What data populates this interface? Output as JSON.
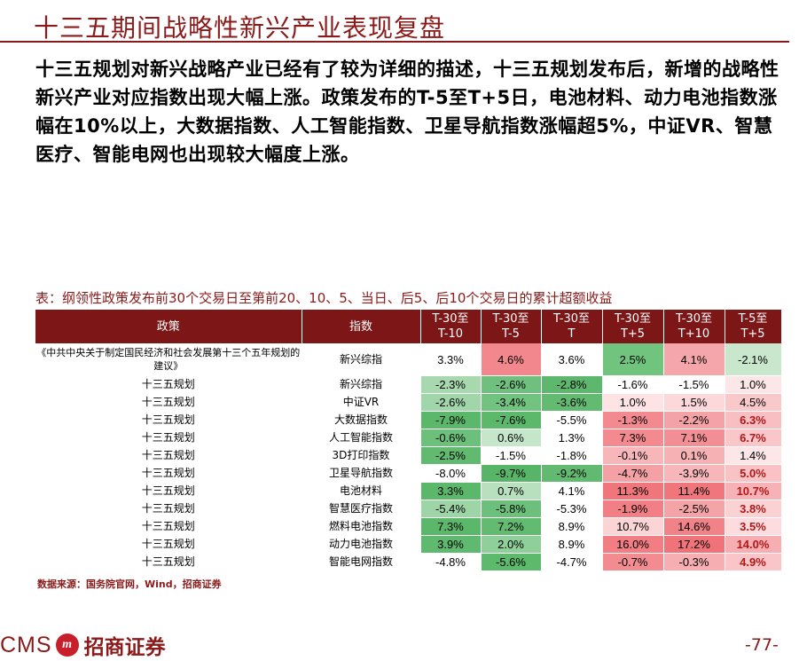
{
  "page": {
    "title": "十三五期间战略性新兴产业表现复盘",
    "intro": "十三五规划对新兴战略产业已经有了较为详细的描述，十三五规划发布后，新增的战略性新兴产业对应指数出现大幅上涨。政策发布的T-5至T+5日，电池材料、动力电池指数涨幅在10%以上，大数据指数、人工智能指数、卫星导航指数涨幅超5%，中证VR、智慧医疗、智能电网也出现较大幅度上涨。",
    "caption": "表：纲领性政策发布前30个交易日至第前20、10、5、当日、后5、后10个交易日的累计超额收益",
    "source": "数据来源：国务院官网，Wind，招商证券",
    "page_number": "-77-"
  },
  "logo": {
    "brand": "CMS",
    "mark": "m",
    "name_cn": "招商证券"
  },
  "table": {
    "headers": [
      [
        "政策",
        ""
      ],
      [
        "指数",
        ""
      ],
      [
        "T-30至",
        "T-10"
      ],
      [
        "T-30至",
        "T-5"
      ],
      [
        "T-30至",
        "T"
      ],
      [
        "T-30至",
        "T+5"
      ],
      [
        "T-30至",
        "T+10"
      ],
      [
        "T-5至",
        "T+5"
      ]
    ],
    "rows": [
      {
        "policy": "《中共中央关于制定国民经济和社会发展第十三个五年规划的建议》",
        "index": "新兴综指",
        "values": [
          "3.3%",
          "4.6%",
          "3.6%",
          "2.5%",
          "4.1%",
          "-2.1%"
        ],
        "colors": [
          "#ffffff",
          "#f2888e",
          "#ffffff",
          "#70c47e",
          "#f4a6aa",
          "#c8e7cc"
        ]
      },
      {
        "policy": "十三五规划",
        "index": "新兴综指",
        "values": [
          "-2.3%",
          "-2.6%",
          "-2.8%",
          "-1.6%",
          "-1.5%",
          "1.0%"
        ],
        "colors": [
          "#a7d8ae",
          "#6fc07e",
          "#5db86d",
          "#ffffff",
          "#ffffff",
          "#fde6e7"
        ]
      },
      {
        "policy": "十三五规划",
        "index": "中证VR",
        "values": [
          "-2.6%",
          "-3.4%",
          "-3.6%",
          "1.0%",
          "1.5%",
          "4.5%"
        ],
        "colors": [
          "#a0d6a9",
          "#72c280",
          "#63ba71",
          "#fde3e4",
          "#fcd8da",
          "#f9c8cb"
        ]
      },
      {
        "policy": "十三五规划",
        "index": "大数据指数",
        "values": [
          "-7.9%",
          "-7.6%",
          "-5.5%",
          "-1.3%",
          "-2.2%",
          "6.3%"
        ],
        "colors": [
          "#5bb86a",
          "#5cb86b",
          "#ffffff",
          "#f38a8f",
          "#f4a2a6",
          "#f8bfc3"
        ]
      },
      {
        "policy": "十三五规划",
        "index": "人工智能指数",
        "values": [
          "-0.6%",
          "0.6%",
          "1.3%",
          "7.3%",
          "7.1%",
          "6.7%"
        ],
        "colors": [
          "#6cc07b",
          "#c6e6cb",
          "#ffffff",
          "#f28a8f",
          "#f38f94",
          "#f9c6c9"
        ]
      },
      {
        "policy": "十三五规划",
        "index": "3D打印指数",
        "values": [
          "-2.5%",
          "-1.5%",
          "-1.8%",
          "-0.1%",
          "0.1%",
          "1.4%"
        ],
        "colors": [
          "#61ba70",
          "#ffffff",
          "#ffffff",
          "#f7b7ba",
          "#f6b1b5",
          "#fde6e7"
        ]
      },
      {
        "policy": "十三五规划",
        "index": "卫星导航指数",
        "values": [
          "-8.0%",
          "-9.7%",
          "-9.2%",
          "-4.7%",
          "-3.9%",
          "5.0%"
        ],
        "colors": [
          "#ffffff",
          "#58b568",
          "#61ba70",
          "#f4a1a5",
          "#f7b7ba",
          "#f9c3c6"
        ]
      },
      {
        "policy": "十三五规划",
        "index": "电池材料",
        "values": [
          "3.3%",
          "0.7%",
          "4.1%",
          "11.3%",
          "11.4%",
          "10.7%"
        ],
        "colors": [
          "#5bb86a",
          "#b8e0be",
          "#ffffff",
          "#f0767c",
          "#f0767c",
          "#f6b2b6"
        ]
      },
      {
        "policy": "十三五规划",
        "index": "智慧医疗指数",
        "values": [
          "-5.4%",
          "-5.8%",
          "-5.3%",
          "-1.9%",
          "-2.5%",
          "3.8%"
        ],
        "colors": [
          "#9ed5a7",
          "#6cc07b",
          "#ffffff",
          "#f17f85",
          "#f4a3a7",
          "#fbd2d4"
        ]
      },
      {
        "policy": "十三五规划",
        "index": "燃料电池指数",
        "values": [
          "7.3%",
          "7.2%",
          "8.9%",
          "10.7%",
          "14.6%",
          "3.5%"
        ],
        "colors": [
          "#5bb86a",
          "#63bb71",
          "#ffffff",
          "#fbd4d6",
          "#f18288",
          "#fcdcde"
        ]
      },
      {
        "policy": "十三五规划",
        "index": "动力电池指数",
        "values": [
          "3.9%",
          "2.0%",
          "8.9%",
          "16.0%",
          "17.2%",
          "14.0%"
        ],
        "colors": [
          "#5fb96e",
          "#8fcf99",
          "#ffffff",
          "#f27d83",
          "#f07379",
          "#f6aeb2"
        ]
      },
      {
        "policy": "十三五规划",
        "index": "智能电网指数",
        "values": [
          "-4.8%",
          "-5.6%",
          "-4.7%",
          "-0.7%",
          "-0.3%",
          "4.9%"
        ],
        "colors": [
          "#ffffff",
          "#5db96c",
          "#ffffff",
          "#f28c91",
          "#f6aeb2",
          "#f9c5c8"
        ]
      }
    ],
    "bold_last_column_rows": [
      3,
      4,
      6,
      7,
      8,
      9,
      10,
      11
    ]
  }
}
